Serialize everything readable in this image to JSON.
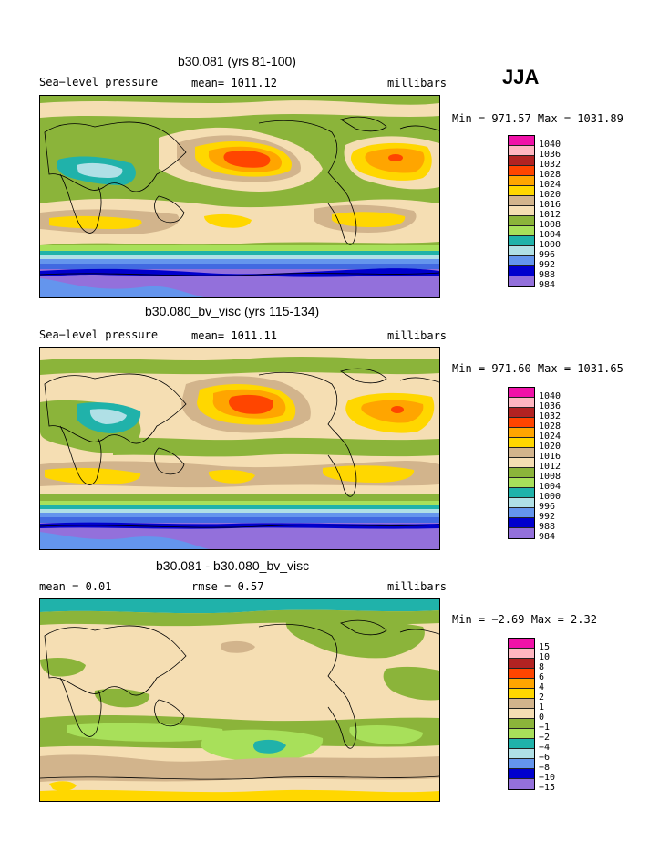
{
  "season_label": "JJA",
  "palette": {
    "pink": "#f012a8",
    "lightpink": "#ffb6c1",
    "darkred": "#b22222",
    "redorange": "#ff4500",
    "orange": "#ffa500",
    "yellow": "#ffd700",
    "tan": "#d2b48c",
    "wheat": "#f5deb3",
    "green": "#8bb43a",
    "lightgreen": "#a8e05a",
    "teal": "#20b2aa",
    "paleblue": "#b0e0e6",
    "cornflower": "#6495ed",
    "royalblue": "#4169e1",
    "navy": "#0000cd",
    "purple": "#9370db"
  },
  "panels": [
    {
      "title": "b30.081 (yrs 81-100)",
      "left_label": "Sea−level pressure",
      "mean_label": "mean= 1011.12",
      "units": "millibars",
      "minmax": "Min = 971.57 Max = 1031.89",
      "legend": [
        "1040",
        "1036",
        "1032",
        "1028",
        "1024",
        "1020",
        "1016",
        "1012",
        "1008",
        "1004",
        "1000",
        "996",
        "992",
        "988",
        "984"
      ]
    },
    {
      "title": "b30.080_bv_visc (yrs 115-134)",
      "left_label": "Sea−level pressure",
      "mean_label": "mean= 1011.11",
      "units": "millibars",
      "minmax": "Min = 971.60 Max = 1031.65",
      "legend": [
        "1040",
        "1036",
        "1032",
        "1028",
        "1024",
        "1020",
        "1016",
        "1012",
        "1008",
        "1004",
        "1000",
        "996",
        "992",
        "988",
        "984"
      ]
    },
    {
      "title": "b30.081 - b30.080_bv_visc",
      "left_label": "mean =    0.01",
      "mean_label": "rmse =    0.57",
      "units": "millibars",
      "minmax": "Min =  −2.69 Max =    2.32",
      "legend": [
        "15",
        "10",
        "8",
        "6",
        "4",
        "2",
        "1",
        "0",
        "−1",
        "−2",
        "−4",
        "−6",
        "−8",
        "−10",
        "−15"
      ]
    }
  ]
}
